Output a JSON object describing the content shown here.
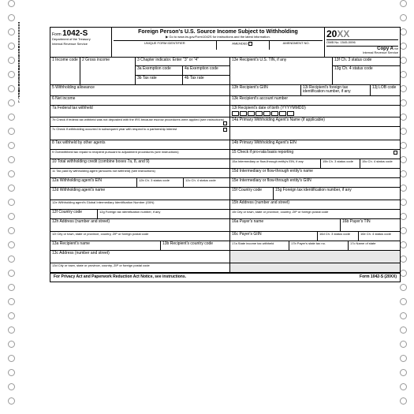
{
  "side_text": "FORM 1042S2019 5-PT",
  "header": {
    "form_label": "Form",
    "form_number": "1042-S",
    "dept": "Department of the Treasury",
    "irs": "Internal Revenue Service",
    "title": "Foreign Person's U.S. Source Income Subject to Withholding",
    "goto": "▶ Go to www.irs.gov/Form1042S for instructions and the latest information.",
    "year_prefix": "20",
    "year_suffix": "XX",
    "omb": "OMB No. 1545-0096",
    "copy": "Copy A",
    "copy_for": "for",
    "copy_dest": "Internal Revenue Service"
  },
  "sub": {
    "unique": "UNIQUE FORM IDENTIFIER",
    "amended": "AMENDED",
    "amend_no": "AMENDMENT NO."
  },
  "f": {
    "b1": "1 Income code",
    "b2": "2 Gross income",
    "b3": "3 Chapter indicator. Enter \"3\" or \"4\"",
    "b3a": "3a Exemption code",
    "b3b": "3b Tax rate",
    "b4a": "4a Exemption code",
    "b4b": "4b Tax rate",
    "b5": "5 Withholding allowance",
    "b6": "6 Net income",
    "b7a": "7a Federal tax withheld",
    "b7b": "7b Check if federal tax withheld was not deposited with the IRS because escrow procedures were applied (see instructions)",
    "b7c": "7c Check if withholding occurred in subsequent year with respect to a partnership interest",
    "b8": "8 Tax withheld by other agents",
    "b9": "9 Overwithheld tax repaid to recipient pursuant to adjustment procedures (see instructions)",
    "b10": "10 Total withholding credit (combine boxes 7a, 8, and 9)",
    "b11": "11 Tax paid by withholding agent (amounts not withheld) (see instructions)",
    "b12a": "12a Withholding agent's EIN",
    "b12b": "12b Ch. 3 status code",
    "b12c": "12c Ch. 4 status code",
    "b12d": "12d Withholding agent's name",
    "b12e": "12e Withholding agent's Global Intermediary Identification Number (GIIN)",
    "b12f": "12f Country code",
    "b12g": "12g Foreign tax identification number, if any",
    "b12h": "12h Address (number and street)",
    "b12i": "12i City or town, state or province, country, ZIP or foreign postal code",
    "b13a": "13a Recipient's name",
    "b13b": "13b Recipient's country code",
    "b13c": "13c Address (number and street)",
    "b13d": "13d City or town, state or province, country, ZIP or foreign postal code",
    "b13e": "13e Recipient's U.S. TIN, if any",
    "b13f": "13f Ch. 3 status code",
    "b13g": "13g Ch. 4 status code",
    "b13h": "13h Recipient's GIIN",
    "b13i": "13i Recipient's foreign tax identification number, if any",
    "b13j": "13j LOB code",
    "b13k": "13k Recipient's account number",
    "b13l": "13l Recipient's date of birth (YYYYMMDD)",
    "b14a": "14a Primary Withholding Agent's Name (if applicable)",
    "b14b": "14b Primary Withholding Agent's EIN",
    "b15": "15 Check if pro-rata basis reporting",
    "b15a": "15a Intermediary or flow-through entity's EIN, if any",
    "b15b": "15b Ch. 3 status code",
    "b15c": "15c Ch. 4 status code",
    "b15d": "15d Intermediary or flow-through entity's name",
    "b15e": "15e Intermediary or flow-through entity's GIIN",
    "b15f": "15f Country code",
    "b15g": "15g Foreign tax identification number, if any",
    "b15h": "15h Address (number and street)",
    "b15i": "15i City or town, state or province, country, ZIP or foreign postal code",
    "b16a": "16a Payer's name",
    "b16b": "16b Payer's TIN",
    "b16c": "16c Payer's GIIN",
    "b16d": "16d Ch. 3 status code",
    "b16e": "16e Ch. 4 status code",
    "b17a": "17a State income tax withheld",
    "b17b": "17b Payer's state tax no.",
    "b17c": "17c Name of state"
  },
  "footer": {
    "left": "For Privacy Act and Paperwork Reduction Act Notice, see instructions.",
    "right": "Form 1042-S (20XX)"
  }
}
